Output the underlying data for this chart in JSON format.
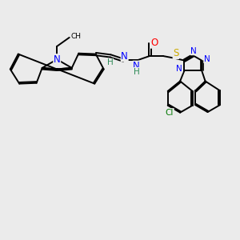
{
  "background_color": "#ebebeb",
  "atom_colors": {
    "N": "#0000ff",
    "O": "#ff0000",
    "S": "#ccaa00",
    "Cl": "#007700",
    "C": "#000000",
    "H": "#2e8b57"
  },
  "bond_color": "#000000",
  "bond_width": 1.4,
  "fig_w": 3.0,
  "fig_h": 3.0,
  "dpi": 100,
  "xlim": [
    0,
    10
  ],
  "ylim": [
    0,
    10
  ]
}
